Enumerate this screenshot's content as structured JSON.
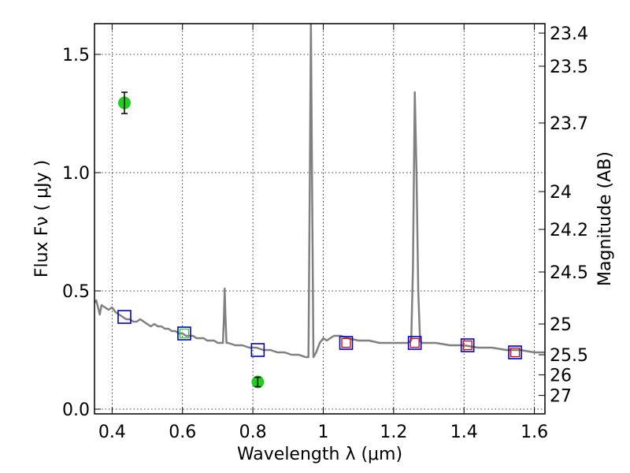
{
  "chart_data": {
    "type": "line",
    "xlabel": "Wavelength  λ (μm)",
    "ylabel": "Flux  Fν  ( μJy )",
    "y2label": "Magnitude (AB)",
    "xlim": [
      0.35,
      1.63
    ],
    "ylim": [
      -0.02,
      1.63
    ],
    "grid": true,
    "x_ticks": [
      0.4,
      0.6,
      0.8,
      1.0,
      1.2,
      1.4,
      1.6
    ],
    "x_tick_labels": [
      "0.4",
      "0.6",
      "0.8",
      "1",
      "1.2",
      "1.4",
      "1.6"
    ],
    "y_ticks": [
      0.0,
      0.5,
      1.0,
      1.5
    ],
    "y_tick_labels": [
      "0.0",
      "0.5",
      "1.0",
      "1.5"
    ],
    "y2_ticks": [
      {
        "label": "23.4",
        "flux": 1.59
      },
      {
        "label": "23.5",
        "flux": 1.45
      },
      {
        "label": "23.7",
        "flux": 1.21
      },
      {
        "label": "24",
        "flux": 0.92
      },
      {
        "label": "24.2",
        "flux": 0.76
      },
      {
        "label": "24.5",
        "flux": 0.58
      },
      {
        "label": "25",
        "flux": 0.36
      },
      {
        "label": "25.5",
        "flux": 0.23
      },
      {
        "label": "26",
        "flux": 0.145
      },
      {
        "label": "27",
        "flux": 0.058
      }
    ],
    "model_spectrum": {
      "color": "#808080",
      "points": [
        [
          0.35,
          0.45
        ],
        [
          0.355,
          0.46
        ],
        [
          0.36,
          0.43
        ],
        [
          0.365,
          0.4
        ],
        [
          0.37,
          0.44
        ],
        [
          0.38,
          0.43
        ],
        [
          0.39,
          0.42
        ],
        [
          0.4,
          0.43
        ],
        [
          0.41,
          0.41
        ],
        [
          0.42,
          0.4
        ],
        [
          0.43,
          0.39
        ],
        [
          0.44,
          0.38
        ],
        [
          0.45,
          0.38
        ],
        [
          0.46,
          0.37
        ],
        [
          0.47,
          0.37
        ],
        [
          0.48,
          0.38
        ],
        [
          0.49,
          0.37
        ],
        [
          0.5,
          0.36
        ],
        [
          0.51,
          0.35
        ],
        [
          0.52,
          0.36
        ],
        [
          0.53,
          0.35
        ],
        [
          0.54,
          0.35
        ],
        [
          0.55,
          0.34
        ],
        [
          0.56,
          0.34
        ],
        [
          0.57,
          0.33
        ],
        [
          0.58,
          0.33
        ],
        [
          0.59,
          0.32
        ],
        [
          0.6,
          0.32
        ],
        [
          0.61,
          0.31
        ],
        [
          0.62,
          0.31
        ],
        [
          0.63,
          0.31
        ],
        [
          0.64,
          0.3
        ],
        [
          0.65,
          0.3
        ],
        [
          0.66,
          0.3
        ],
        [
          0.67,
          0.29
        ],
        [
          0.68,
          0.29
        ],
        [
          0.69,
          0.29
        ],
        [
          0.7,
          0.28
        ],
        [
          0.71,
          0.28
        ],
        [
          0.715,
          0.28
        ],
        [
          0.718,
          0.4
        ],
        [
          0.72,
          0.51
        ],
        [
          0.722,
          0.4
        ],
        [
          0.725,
          0.28
        ],
        [
          0.73,
          0.28
        ],
        [
          0.75,
          0.27
        ],
        [
          0.77,
          0.27
        ],
        [
          0.79,
          0.26
        ],
        [
          0.81,
          0.26
        ],
        [
          0.83,
          0.25
        ],
        [
          0.85,
          0.25
        ],
        [
          0.87,
          0.24
        ],
        [
          0.89,
          0.24
        ],
        [
          0.91,
          0.23
        ],
        [
          0.93,
          0.23
        ],
        [
          0.95,
          0.22
        ],
        [
          0.955,
          0.22
        ],
        [
          0.958,
          0.22
        ],
        [
          0.962,
          1.0
        ],
        [
          0.965,
          1.63
        ],
        [
          0.968,
          1.0
        ],
        [
          0.972,
          0.22
        ],
        [
          0.98,
          0.24
        ],
        [
          0.99,
          0.28
        ],
        [
          1.0,
          0.3
        ],
        [
          1.01,
          0.29
        ],
        [
          1.02,
          0.3
        ],
        [
          1.03,
          0.31
        ],
        [
          1.05,
          0.31
        ],
        [
          1.07,
          0.3
        ],
        [
          1.1,
          0.29
        ],
        [
          1.13,
          0.29
        ],
        [
          1.16,
          0.28
        ],
        [
          1.2,
          0.28
        ],
        [
          1.24,
          0.28
        ],
        [
          1.25,
          0.29
        ],
        [
          1.255,
          0.6
        ],
        [
          1.26,
          1.34
        ],
        [
          1.265,
          1.0
        ],
        [
          1.27,
          0.5
        ],
        [
          1.275,
          0.29
        ],
        [
          1.28,
          0.28
        ],
        [
          1.32,
          0.28
        ],
        [
          1.36,
          0.27
        ],
        [
          1.4,
          0.27
        ],
        [
          1.44,
          0.26
        ],
        [
          1.48,
          0.26
        ],
        [
          1.52,
          0.25
        ],
        [
          1.56,
          0.25
        ],
        [
          1.6,
          0.24
        ],
        [
          1.63,
          0.24
        ]
      ]
    },
    "model_photometry": {
      "marker": "square",
      "color": "#0000cc",
      "points": [
        [
          0.435,
          0.39
        ],
        [
          0.605,
          0.32
        ],
        [
          0.814,
          0.25
        ],
        [
          1.065,
          0.28
        ],
        [
          1.26,
          0.28
        ],
        [
          1.41,
          0.27
        ],
        [
          1.545,
          0.24
        ]
      ]
    },
    "observed_photometry": {
      "marker": "square",
      "color": "#cc0000",
      "points": [
        [
          1.065,
          0.28
        ],
        [
          1.26,
          0.28
        ],
        [
          1.41,
          0.27
        ],
        [
          1.545,
          0.24
        ]
      ]
    },
    "observed_upper_limits": {
      "marker": "square",
      "color": "#33cc33",
      "points": [
        [
          0.605,
          0.32
        ]
      ]
    },
    "observed_detections": {
      "marker": "circle",
      "color": "#22cc22",
      "points": [
        {
          "x": 0.435,
          "y": 1.295,
          "err": 0.045
        },
        {
          "x": 0.814,
          "y": 0.115,
          "err": 0.02
        }
      ]
    }
  }
}
